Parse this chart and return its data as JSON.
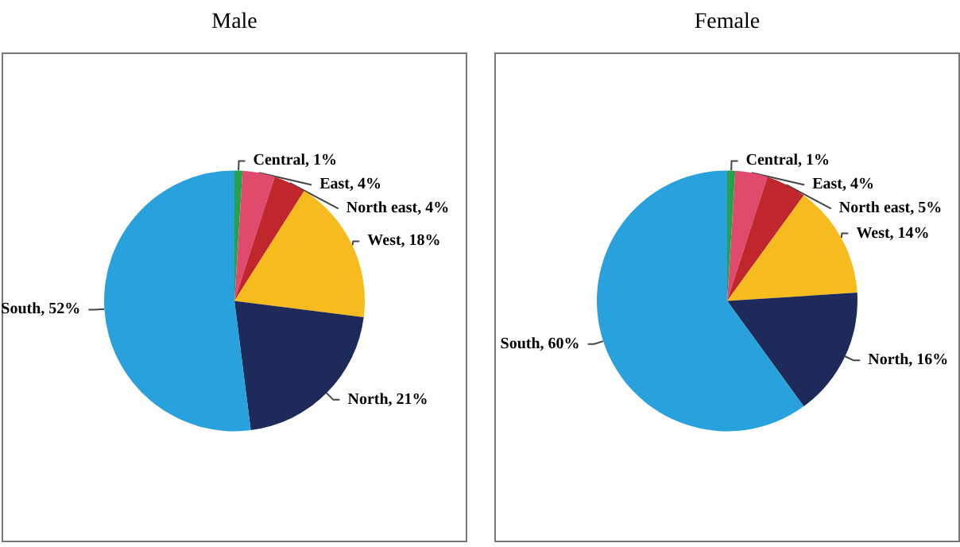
{
  "chart_data": [
    {
      "type": "pie",
      "title": "Male",
      "categories": [
        "Central",
        "East",
        "North east",
        "West",
        "North",
        "South"
      ],
      "values": [
        1,
        4,
        4,
        18,
        21,
        52
      ],
      "colors": [
        "#25a24a",
        "#e04a6c",
        "#c0272d",
        "#f6bb1e",
        "#1e2a5a",
        "#29a1dc"
      ],
      "value_labels": [
        "1%",
        "4%",
        "4%",
        "18%",
        "21%",
        "52%"
      ]
    },
    {
      "type": "pie",
      "title": "Female",
      "categories": [
        "Central",
        "East",
        "North east",
        "West",
        "North",
        "South"
      ],
      "values": [
        1,
        4,
        5,
        14,
        16,
        60
      ],
      "colors": [
        "#25a24a",
        "#e04a6c",
        "#c0272d",
        "#f6bb1e",
        "#1e2a5a",
        "#29a1dc"
      ],
      "value_labels": [
        "1%",
        "4%",
        "5%",
        "14%",
        "16%",
        "60%"
      ]
    }
  ]
}
